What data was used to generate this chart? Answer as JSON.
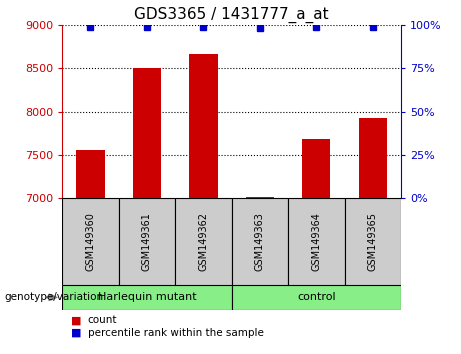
{
  "title": "GDS3365 / 1431777_a_at",
  "samples": [
    "GSM149360",
    "GSM149361",
    "GSM149362",
    "GSM149363",
    "GSM149364",
    "GSM149365"
  ],
  "counts": [
    7560,
    8500,
    8660,
    7020,
    7680,
    7920
  ],
  "percentiles": [
    99,
    99,
    99,
    98,
    99,
    99
  ],
  "ylim_left": [
    7000,
    9000
  ],
  "ylim_right": [
    0,
    100
  ],
  "yticks_left": [
    7000,
    7500,
    8000,
    8500,
    9000
  ],
  "yticks_right": [
    0,
    25,
    50,
    75,
    100
  ],
  "bar_color": "#cc0000",
  "dot_color": "#0000cc",
  "group1_label": "Harlequin mutant",
  "group2_label": "control",
  "group1_indices": [
    0,
    1,
    2
  ],
  "group2_indices": [
    3,
    4,
    5
  ],
  "group_color": "#88ee88",
  "sample_box_color": "#cccccc",
  "genotype_label": "genotype/variation",
  "legend_count_label": "count",
  "legend_percentile_label": "percentile rank within the sample",
  "title_fontsize": 11,
  "axis_fontsize": 8,
  "label_fontsize": 8
}
